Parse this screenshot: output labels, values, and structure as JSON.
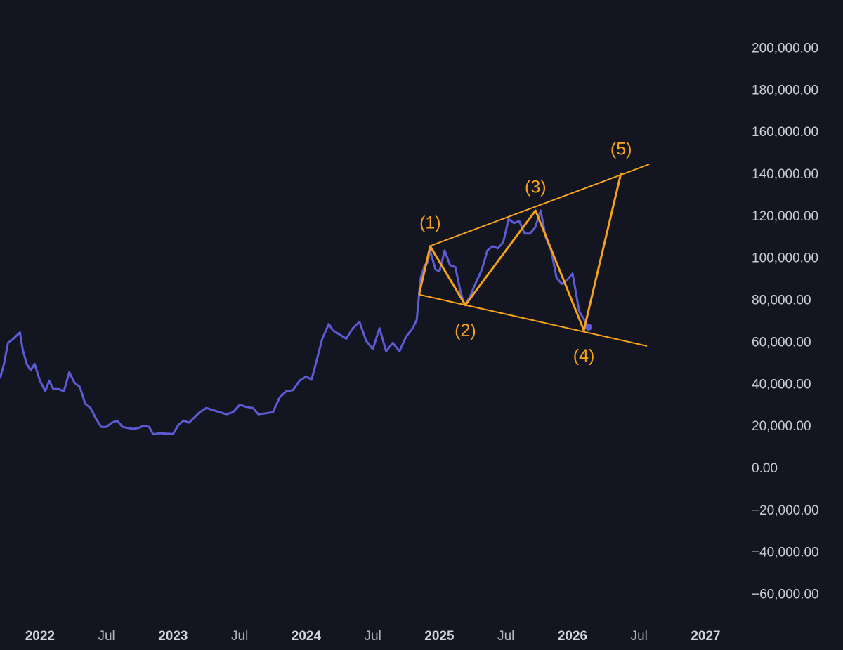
{
  "chart_data": {
    "type": "line",
    "x": [
      2021.7,
      2021.73,
      2021.76,
      2021.8,
      2021.85,
      2021.87,
      2021.9,
      2021.93,
      2021.96,
      2022.0,
      2022.04,
      2022.07,
      2022.1,
      2022.14,
      2022.18,
      2022.22,
      2022.26,
      2022.3,
      2022.34,
      2022.38,
      2022.42,
      2022.46,
      2022.5,
      2022.54,
      2022.58,
      2022.62,
      2022.66,
      2022.7,
      2022.74,
      2022.78,
      2022.82,
      2022.85,
      2022.9,
      2022.95,
      2023.0,
      2023.04,
      2023.08,
      2023.12,
      2023.16,
      2023.2,
      2023.25,
      2023.3,
      2023.35,
      2023.4,
      2023.45,
      2023.5,
      2023.55,
      2023.6,
      2023.64,
      2023.7,
      2023.75,
      2023.8,
      2023.85,
      2023.9,
      2023.95,
      2024.0,
      2024.04,
      2024.08,
      2024.12,
      2024.17,
      2024.2,
      2024.25,
      2024.3,
      2024.35,
      2024.4,
      2024.45,
      2024.5,
      2024.55,
      2024.6,
      2024.65,
      2024.7,
      2024.75,
      2024.8,
      2024.83,
      2024.86,
      2024.89,
      2024.91,
      2024.93,
      2024.97,
      2025.0,
      2025.04,
      2025.08,
      2025.12,
      2025.16,
      2025.19,
      2025.23,
      2025.27,
      2025.32,
      2025.36,
      2025.4,
      2025.44,
      2025.48,
      2025.52,
      2025.56,
      2025.6,
      2025.64,
      2025.68,
      2025.72,
      2025.76,
      2025.8,
      2025.84,
      2025.88,
      2025.92,
      2025.96,
      2026.0,
      2026.05,
      2026.12
    ],
    "series": [
      {
        "color": "#5d5ad6",
        "values": [
          43000,
          50000,
          60000,
          62000,
          65000,
          57000,
          50000,
          47000,
          50000,
          42000,
          37000,
          42000,
          38000,
          38000,
          37000,
          46000,
          41000,
          39000,
          31000,
          29000,
          24000,
          20000,
          20000,
          22000,
          23000,
          20000,
          19500,
          19000,
          19500,
          20500,
          20000,
          16500,
          17000,
          16800,
          16600,
          21000,
          23000,
          22000,
          24500,
          27000,
          29000,
          28000,
          27000,
          26000,
          27000,
          30500,
          29500,
          29000,
          26000,
          26500,
          27000,
          34000,
          37000,
          37500,
          42000,
          44000,
          42500,
          52000,
          62000,
          69000,
          66000,
          64000,
          62000,
          67000,
          70000,
          61000,
          57000,
          67000,
          56000,
          60000,
          56000,
          63000,
          67000,
          71000,
          91000,
          97000,
          98000,
          104000,
          95000,
          94000,
          104000,
          97000,
          96000,
          84000,
          78000,
          82000,
          88000,
          95000,
          104000,
          106000,
          105000,
          108000,
          119000,
          117000,
          118000,
          112000,
          112000,
          115000,
          123000,
          110000,
          104000,
          91000,
          88000,
          90000,
          93000,
          75000,
          67500
        ]
      }
    ],
    "annotations": {
      "color": "#f7a21b",
      "labels": [
        "(1)",
        "(2)",
        "(3)",
        "(4)",
        "(5)"
      ],
      "wave": {
        "x": [
          2024.847,
          2024.931,
          2025.195,
          2025.722,
          2026.085,
          2026.365
        ],
        "y": [
          83000,
          106000,
          78000,
          123000,
          66000,
          141000
        ]
      },
      "upper_line": {
        "x": [
          2024.926,
          2026.576
        ],
        "y": [
          106000,
          145000
        ]
      },
      "lower_line": {
        "x": [
          2024.847,
          2026.56
        ],
        "y": [
          83000,
          58500
        ]
      }
    },
    "xlim": [
      2021.7,
      2027.24
    ],
    "xticks": [
      2022,
      {
        "value": 2022.5,
        "label": "Jul"
      },
      2023,
      {
        "value": 2023.5,
        "label": "Jul"
      },
      2024,
      {
        "value": 2024.5,
        "label": "Jul"
      },
      2025,
      {
        "value": 2025.5,
        "label": "Jul"
      },
      2026,
      {
        "value": 2026.5,
        "label": "Jul"
      },
      2027
    ],
    "ylim": [
      -70830,
      223200
    ],
    "yticks": [
      {
        "value": 200000,
        "label": "200,000.00"
      },
      {
        "value": 180000,
        "label": "180,000.00"
      },
      {
        "value": 160000,
        "label": "160,000.00"
      },
      {
        "value": 140000,
        "label": "140,000.00"
      },
      {
        "value": 120000,
        "label": "120,000.00"
      },
      {
        "value": 100000,
        "label": "100,000.00"
      },
      {
        "value": 80000,
        "label": "80,000.00"
      },
      {
        "value": 60000,
        "label": "60,000.00"
      },
      {
        "value": 40000,
        "label": "40,000.00"
      },
      {
        "value": 20000,
        "label": "20,000.00"
      },
      {
        "value": 0,
        "label": "0.00"
      },
      {
        "value": -20000,
        "label": "−20,000.00"
      },
      {
        "value": -40000,
        "label": "−40,000.00"
      },
      {
        "value": -60000,
        "label": "−60,000.00"
      }
    ]
  }
}
